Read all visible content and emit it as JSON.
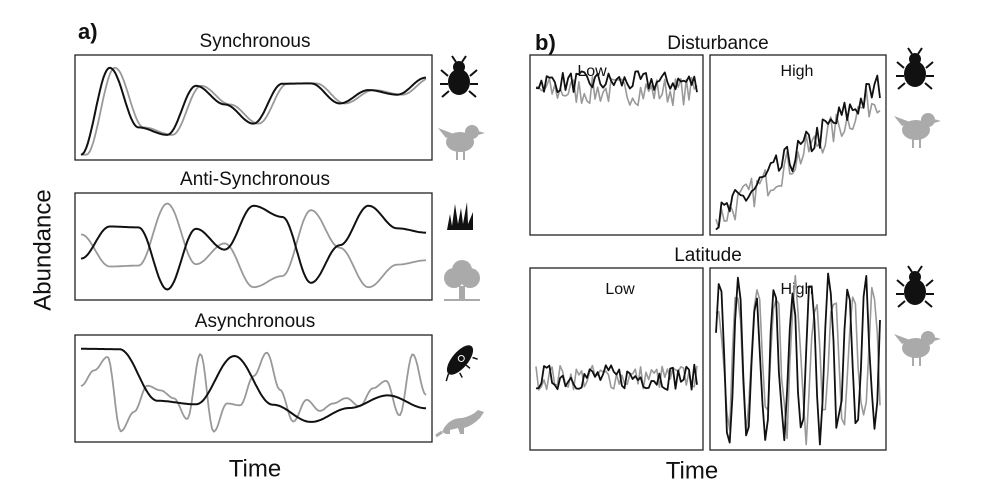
{
  "panel_a": {
    "label": "a)",
    "y_label": "Abundance",
    "x_label": "Time",
    "panels": [
      {
        "title": "Synchronous"
      },
      {
        "title": "Anti-Synchronous"
      },
      {
        "title": "Asynchronous"
      }
    ]
  },
  "panel_b": {
    "label": "b)",
    "x_label": "Time",
    "rows": [
      {
        "title": "Disturbance",
        "columns": [
          "Low",
          "High"
        ]
      },
      {
        "title": "Latitude",
        "columns": [
          "Low",
          "High"
        ]
      }
    ]
  }
}
